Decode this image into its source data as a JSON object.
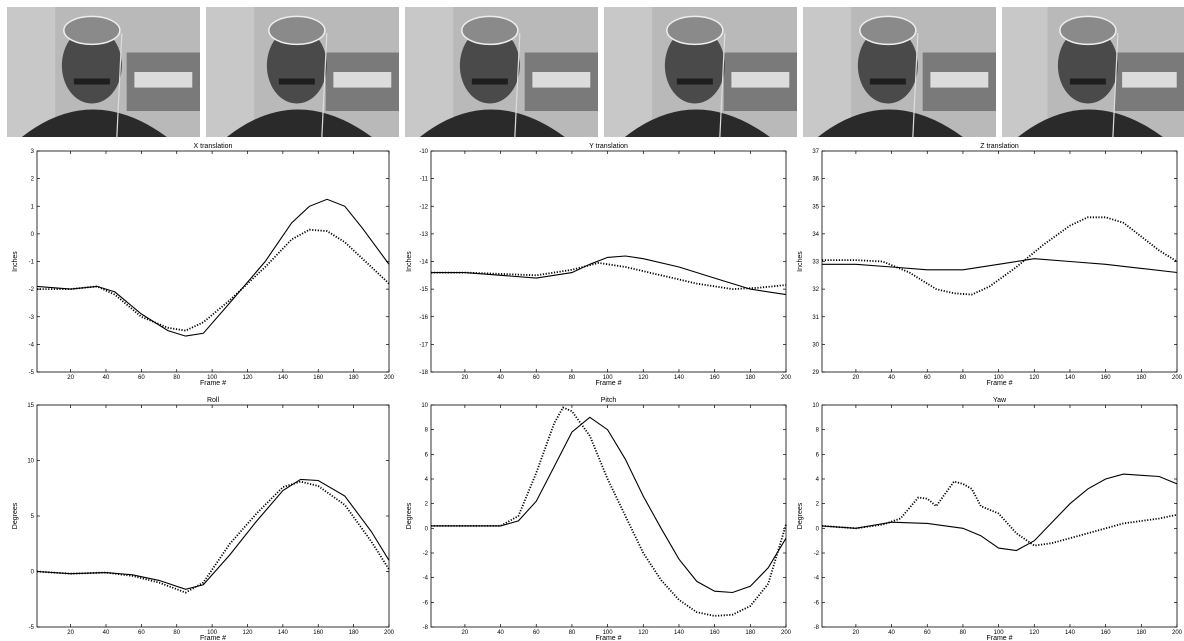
{
  "frames": {
    "count": 6,
    "icons": [
      "video-frame-icon",
      "video-frame-icon",
      "video-frame-icon",
      "video-frame-icon",
      "video-frame-icon",
      "video-frame-icon"
    ]
  },
  "colors": {
    "line": "#000000",
    "axis": "#000000",
    "background": "#ffffff"
  },
  "chart_data": [
    {
      "type": "line",
      "title": "X translation",
      "xlabel": "Frame #",
      "ylabel": "Inches",
      "xlim": [
        1,
        200
      ],
      "ylim": [
        -5,
        3
      ],
      "xticks": [
        20,
        40,
        60,
        80,
        100,
        120,
        140,
        160,
        180,
        200
      ],
      "yticks": [
        -5,
        -4,
        -3,
        -2,
        -1,
        0,
        1,
        2,
        3
      ],
      "grid": false,
      "series": [
        {
          "style": "solid",
          "x": [
            1,
            20,
            35,
            45,
            60,
            75,
            85,
            95,
            110,
            130,
            145,
            155,
            165,
            175,
            185,
            200
          ],
          "y": [
            -1.9,
            -2.0,
            -1.9,
            -2.1,
            -2.9,
            -3.5,
            -3.7,
            -3.6,
            -2.5,
            -1.0,
            0.4,
            1.0,
            1.25,
            1.0,
            0.2,
            -1.1
          ]
        },
        {
          "style": "dotted",
          "x": [
            1,
            20,
            35,
            45,
            60,
            75,
            85,
            95,
            110,
            130,
            145,
            155,
            165,
            175,
            185,
            200
          ],
          "y": [
            -2.0,
            -2.0,
            -1.9,
            -2.2,
            -3.0,
            -3.4,
            -3.5,
            -3.2,
            -2.4,
            -1.2,
            -0.2,
            0.15,
            0.1,
            -0.3,
            -0.9,
            -1.8
          ]
        }
      ]
    },
    {
      "type": "line",
      "title": "Y translation",
      "xlabel": "Frame #",
      "ylabel": "Inches",
      "xlim": [
        1,
        200
      ],
      "ylim": [
        -18,
        -10
      ],
      "xticks": [
        20,
        40,
        60,
        80,
        100,
        120,
        140,
        160,
        180,
        200
      ],
      "yticks": [
        -18,
        -17,
        -16,
        -15,
        -14,
        -13,
        -12,
        -11,
        -10
      ],
      "grid": false,
      "series": [
        {
          "style": "solid",
          "x": [
            1,
            20,
            40,
            60,
            70,
            80,
            90,
            100,
            110,
            120,
            140,
            160,
            180,
            200
          ],
          "y": [
            -14.4,
            -14.4,
            -14.5,
            -14.6,
            -14.5,
            -14.4,
            -14.1,
            -13.85,
            -13.8,
            -13.9,
            -14.2,
            -14.6,
            -15.0,
            -15.2
          ]
        },
        {
          "style": "dotted",
          "x": [
            1,
            20,
            40,
            60,
            80,
            95,
            110,
            130,
            150,
            170,
            185,
            200
          ],
          "y": [
            -14.4,
            -14.4,
            -14.45,
            -14.5,
            -14.3,
            -14.05,
            -14.2,
            -14.5,
            -14.8,
            -15.0,
            -14.95,
            -14.85
          ]
        }
      ]
    },
    {
      "type": "line",
      "title": "Z translation",
      "xlabel": "Frame #",
      "ylabel": "Inches",
      "xlim": [
        1,
        200
      ],
      "ylim": [
        29,
        37
      ],
      "xticks": [
        20,
        40,
        60,
        80,
        100,
        120,
        140,
        160,
        180,
        200
      ],
      "yticks": [
        29,
        30,
        31,
        32,
        33,
        34,
        35,
        36,
        37
      ],
      "grid": false,
      "series": [
        {
          "style": "solid",
          "x": [
            1,
            20,
            40,
            60,
            80,
            100,
            120,
            140,
            160,
            180,
            200
          ],
          "y": [
            32.9,
            32.9,
            32.8,
            32.7,
            32.7,
            32.9,
            33.1,
            33.0,
            32.9,
            32.75,
            32.6
          ]
        },
        {
          "style": "dotted",
          "x": [
            1,
            20,
            35,
            50,
            65,
            75,
            85,
            95,
            110,
            125,
            140,
            150,
            160,
            170,
            180,
            190,
            200
          ],
          "y": [
            33.05,
            33.05,
            33.0,
            32.6,
            32.0,
            31.85,
            31.8,
            32.1,
            32.8,
            33.6,
            34.3,
            34.6,
            34.6,
            34.4,
            33.9,
            33.4,
            33.0
          ]
        }
      ]
    },
    {
      "type": "line",
      "title": "Roll",
      "xlabel": "Frame #",
      "ylabel": "Degrees",
      "xlim": [
        1,
        200
      ],
      "ylim": [
        -5,
        15
      ],
      "xticks": [
        20,
        40,
        60,
        80,
        100,
        120,
        140,
        160,
        180,
        200
      ],
      "yticks": [
        -5,
        0,
        5,
        10,
        15
      ],
      "grid": false,
      "series": [
        {
          "style": "solid",
          "x": [
            1,
            20,
            40,
            55,
            70,
            85,
            95,
            110,
            125,
            140,
            150,
            160,
            175,
            190,
            200
          ],
          "y": [
            0.0,
            -0.2,
            -0.1,
            -0.3,
            -0.8,
            -1.6,
            -1.2,
            1.5,
            4.5,
            7.3,
            8.3,
            8.2,
            6.8,
            3.6,
            1.0
          ]
        },
        {
          "style": "dotted",
          "x": [
            1,
            20,
            40,
            55,
            70,
            85,
            95,
            110,
            125,
            140,
            150,
            160,
            175,
            190,
            200
          ],
          "y": [
            0.0,
            -0.2,
            -0.1,
            -0.4,
            -1.0,
            -1.9,
            -1.0,
            2.5,
            5.2,
            7.6,
            8.1,
            7.7,
            6.0,
            2.7,
            0.2
          ]
        }
      ]
    },
    {
      "type": "line",
      "title": "Pitch",
      "xlabel": "Frame #",
      "ylabel": "Degrees",
      "xlim": [
        1,
        200
      ],
      "ylim": [
        -8,
        10
      ],
      "xticks": [
        20,
        40,
        60,
        80,
        100,
        120,
        140,
        160,
        180,
        200
      ],
      "yticks": [
        -8,
        -6,
        -4,
        -2,
        0,
        2,
        4,
        6,
        8,
        10
      ],
      "grid": false,
      "series": [
        {
          "style": "solid",
          "x": [
            1,
            20,
            40,
            50,
            60,
            70,
            80,
            90,
            100,
            110,
            120,
            130,
            140,
            150,
            160,
            170,
            180,
            190,
            200
          ],
          "y": [
            0.2,
            0.2,
            0.2,
            0.6,
            2.2,
            5.0,
            7.8,
            9.0,
            8.0,
            5.6,
            2.6,
            0.0,
            -2.5,
            -4.3,
            -5.1,
            -5.2,
            -4.7,
            -3.2,
            -0.8
          ]
        },
        {
          "style": "dotted",
          "x": [
            1,
            20,
            40,
            50,
            60,
            70,
            75,
            80,
            90,
            100,
            110,
            120,
            130,
            140,
            150,
            160,
            170,
            180,
            190,
            200
          ],
          "y": [
            0.2,
            0.2,
            0.2,
            1.0,
            4.5,
            8.5,
            9.8,
            9.5,
            7.5,
            4.0,
            1.0,
            -2.0,
            -4.2,
            -5.8,
            -6.8,
            -7.1,
            -7.0,
            -6.3,
            -4.5,
            0.3
          ]
        }
      ]
    },
    {
      "type": "line",
      "title": "Yaw",
      "xlabel": "Frame #",
      "ylabel": "Degrees",
      "xlim": [
        1,
        200
      ],
      "ylim": [
        -8,
        10
      ],
      "xticks": [
        20,
        40,
        60,
        80,
        100,
        120,
        140,
        160,
        180,
        200
      ],
      "yticks": [
        -8,
        -6,
        -4,
        -2,
        0,
        2,
        4,
        6,
        8,
        10
      ],
      "grid": false,
      "series": [
        {
          "style": "solid",
          "x": [
            1,
            20,
            40,
            60,
            80,
            90,
            100,
            110,
            120,
            130,
            140,
            150,
            160,
            170,
            180,
            190,
            200
          ],
          "y": [
            0.2,
            0.0,
            0.5,
            0.4,
            0.0,
            -0.6,
            -1.6,
            -1.8,
            -1.0,
            0.5,
            2.0,
            3.2,
            4.0,
            4.4,
            4.3,
            4.2,
            3.6
          ]
        },
        {
          "style": "dotted",
          "x": [
            1,
            20,
            35,
            45,
            55,
            60,
            65,
            75,
            80,
            85,
            90,
            100,
            110,
            120,
            130,
            150,
            170,
            190,
            200
          ],
          "y": [
            0.2,
            0.0,
            0.3,
            0.8,
            2.5,
            2.4,
            1.8,
            3.8,
            3.6,
            3.2,
            1.8,
            1.2,
            -0.4,
            -1.4,
            -1.2,
            -0.4,
            0.4,
            0.8,
            1.1
          ]
        }
      ]
    }
  ]
}
